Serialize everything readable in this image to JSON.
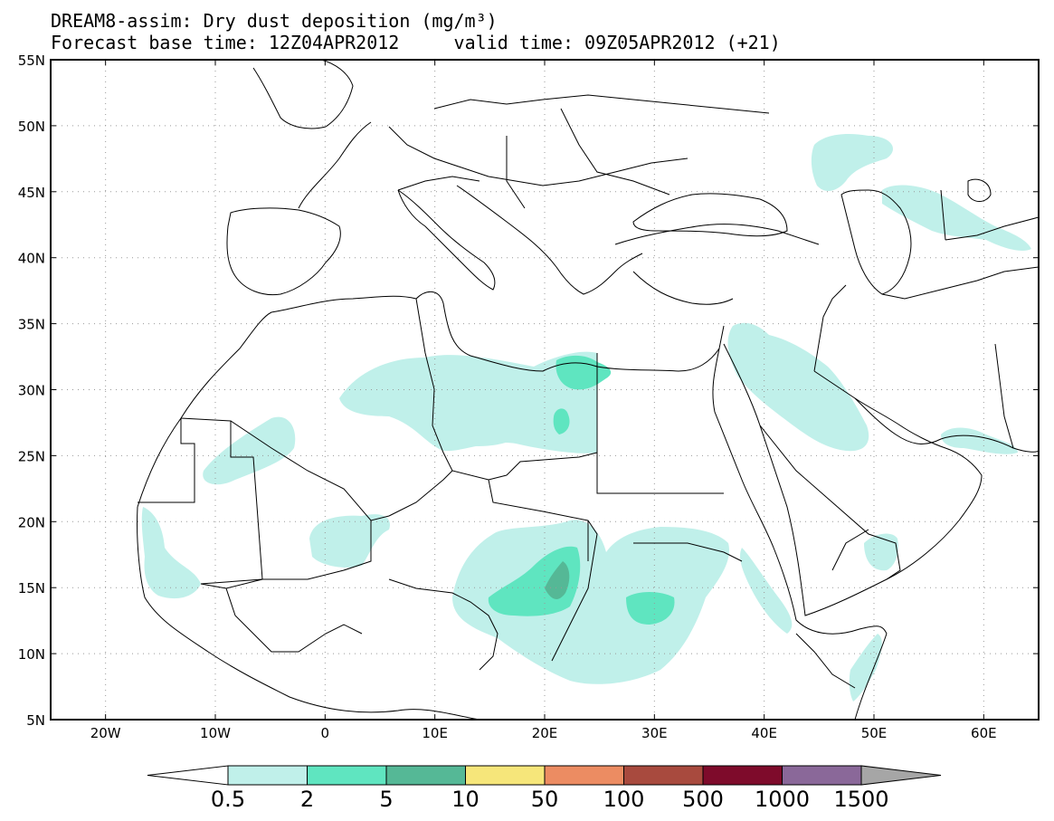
{
  "title": {
    "line1": "DREAM8-assim: Dry dust deposition (mg/m³)",
    "base_label": "Forecast base time: 12Z04APR2012",
    "valid_label": "valid time: 09Z05APR2012 (+21)"
  },
  "axes": {
    "lat_labels": [
      "55N",
      "50N",
      "45N",
      "40N",
      "35N",
      "30N",
      "25N",
      "20N",
      "15N",
      "10N",
      "5N"
    ],
    "lat_values": [
      55,
      50,
      45,
      40,
      35,
      30,
      25,
      20,
      15,
      10,
      5
    ],
    "lon_labels": [
      "20W",
      "10W",
      "0",
      "10E",
      "20E",
      "30E",
      "40E",
      "50E",
      "60E"
    ],
    "lon_values": [
      -20,
      -10,
      0,
      10,
      20,
      30,
      40,
      50,
      60
    ],
    "lon_range": [
      -25,
      65
    ],
    "lat_range": [
      5,
      55
    ],
    "grid": true
  },
  "colorbar": {
    "labels": [
      "0.5",
      "2",
      "5",
      "10",
      "50",
      "100",
      "500",
      "1000",
      "1500"
    ],
    "colors": [
      "#c0f0ea",
      "#5fe5c0",
      "#55b896",
      "#f6e67a",
      "#ec8c62",
      "#a84a3e",
      "#7e0b2b",
      "#8a6899",
      "#a6a6a6"
    ]
  }
}
